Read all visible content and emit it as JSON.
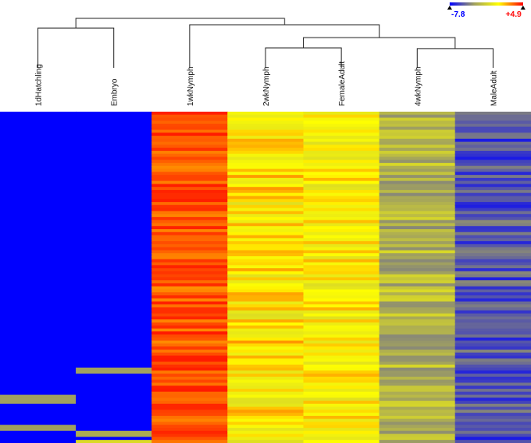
{
  "chart_data": {
    "type": "heatmap",
    "title": "",
    "samples": [
      "1dHatchling",
      "Embryo",
      "1wkNymph",
      "2wkNymph",
      "FemaleAdult",
      "4wkNymph",
      "MaleAdult"
    ],
    "dendrogram": {
      "leaf_order": [
        "1dHatchling",
        "Embryo",
        "1wkNymph",
        "2wkNymph",
        "FemaleAdult",
        "4wkNymph",
        "MaleAdult"
      ],
      "merges": [
        {
          "id": "c1",
          "children": [
            "1dHatchling",
            "Embryo"
          ],
          "height": 0.62
        },
        {
          "id": "c2",
          "children": [
            "2wkNymph",
            "FemaleAdult"
          ],
          "height": 0.31
        },
        {
          "id": "c3",
          "children": [
            "4wkNymph",
            "MaleAdult"
          ],
          "height": 0.3
        },
        {
          "id": "c4",
          "children": [
            "c2",
            "c3"
          ],
          "height": 0.47
        },
        {
          "id": "c5",
          "children": [
            "1wkNymph",
            "c4"
          ],
          "height": 0.67
        },
        {
          "id": "c6",
          "children": [
            "c1",
            "c5"
          ],
          "height": 0.77
        }
      ]
    },
    "color_scale": {
      "min": -7.8,
      "max": 4.9,
      "min_label": "-7.8",
      "max_label": "+4.9",
      "colors": [
        "#0000ff",
        "#a0a060",
        "#ffff00",
        "#ff0000"
      ],
      "min_color": "#0000ff",
      "max_color": "#ff0000"
    },
    "column_profiles": {
      "1dHatchling": {
        "base": -7.8,
        "jitter": 0.0,
        "exceptions": [
          {
            "rows": [
              94,
              96
            ],
            "value": -3.5
          },
          {
            "rows": [
              104,
              105
            ],
            "value": -3.5
          }
        ]
      },
      "Embryo": {
        "base": -7.8,
        "jitter": 0.0,
        "exceptions": [
          {
            "rows": [
              85,
              86
            ],
            "value": -3.5
          },
          {
            "rows": [
              106,
              107
            ],
            "value": -3.0
          },
          {
            "rows": [
              109,
              110
            ],
            "value": -1.0
          }
        ]
      },
      "1wkNymph": {
        "base": 3.5,
        "jitter": 1.0
      },
      "2wkNymph": {
        "base": 0.8,
        "jitter": 1.6
      },
      "FemaleAdult": {
        "base": 0.6,
        "jitter": 1.4
      },
      "4wkNymph": {
        "base": -2.6,
        "jitter": 1.6
      },
      "MaleAdult": {
        "base": -5.6,
        "jitter": 1.5
      }
    },
    "n_rows": 110,
    "legend_position": "top-right",
    "xlabel": "",
    "ylabel": ""
  }
}
